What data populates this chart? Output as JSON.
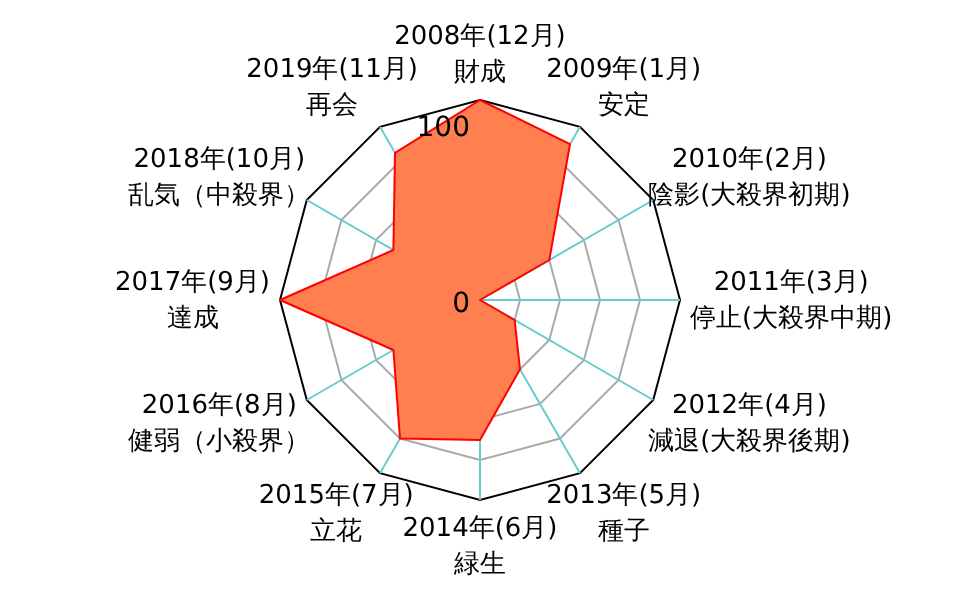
{
  "chart_data": {
    "type": "radar",
    "categories": [
      "2008年(12月)\n財成",
      "2009年(1月)\n安定",
      "2010年(2月)\n陰影(大殺界初期)",
      "2011年(3月)\n停止(大殺界中期)",
      "2012年(4月)\n減退(大殺界後期)",
      "2013年(5月)\n種子",
      "2014年(6月)\n緑生",
      "2015年(7月)\n立花",
      "2016年(8月)\n健弱（小殺界）",
      "2017年(9月)\n達成",
      "2018年(10月)\n乱気（中殺界）",
      "2019年(11月)\n再会"
    ],
    "series": [
      {
        "color": "#ff7f50",
        "values": [
          100,
          90,
          40,
          0,
          20,
          40,
          70,
          80,
          50,
          100,
          50,
          85
        ]
      }
    ],
    "ylim": [
      0,
      100
    ],
    "yticks": [
      0,
      100
    ],
    "grid": true
  }
}
